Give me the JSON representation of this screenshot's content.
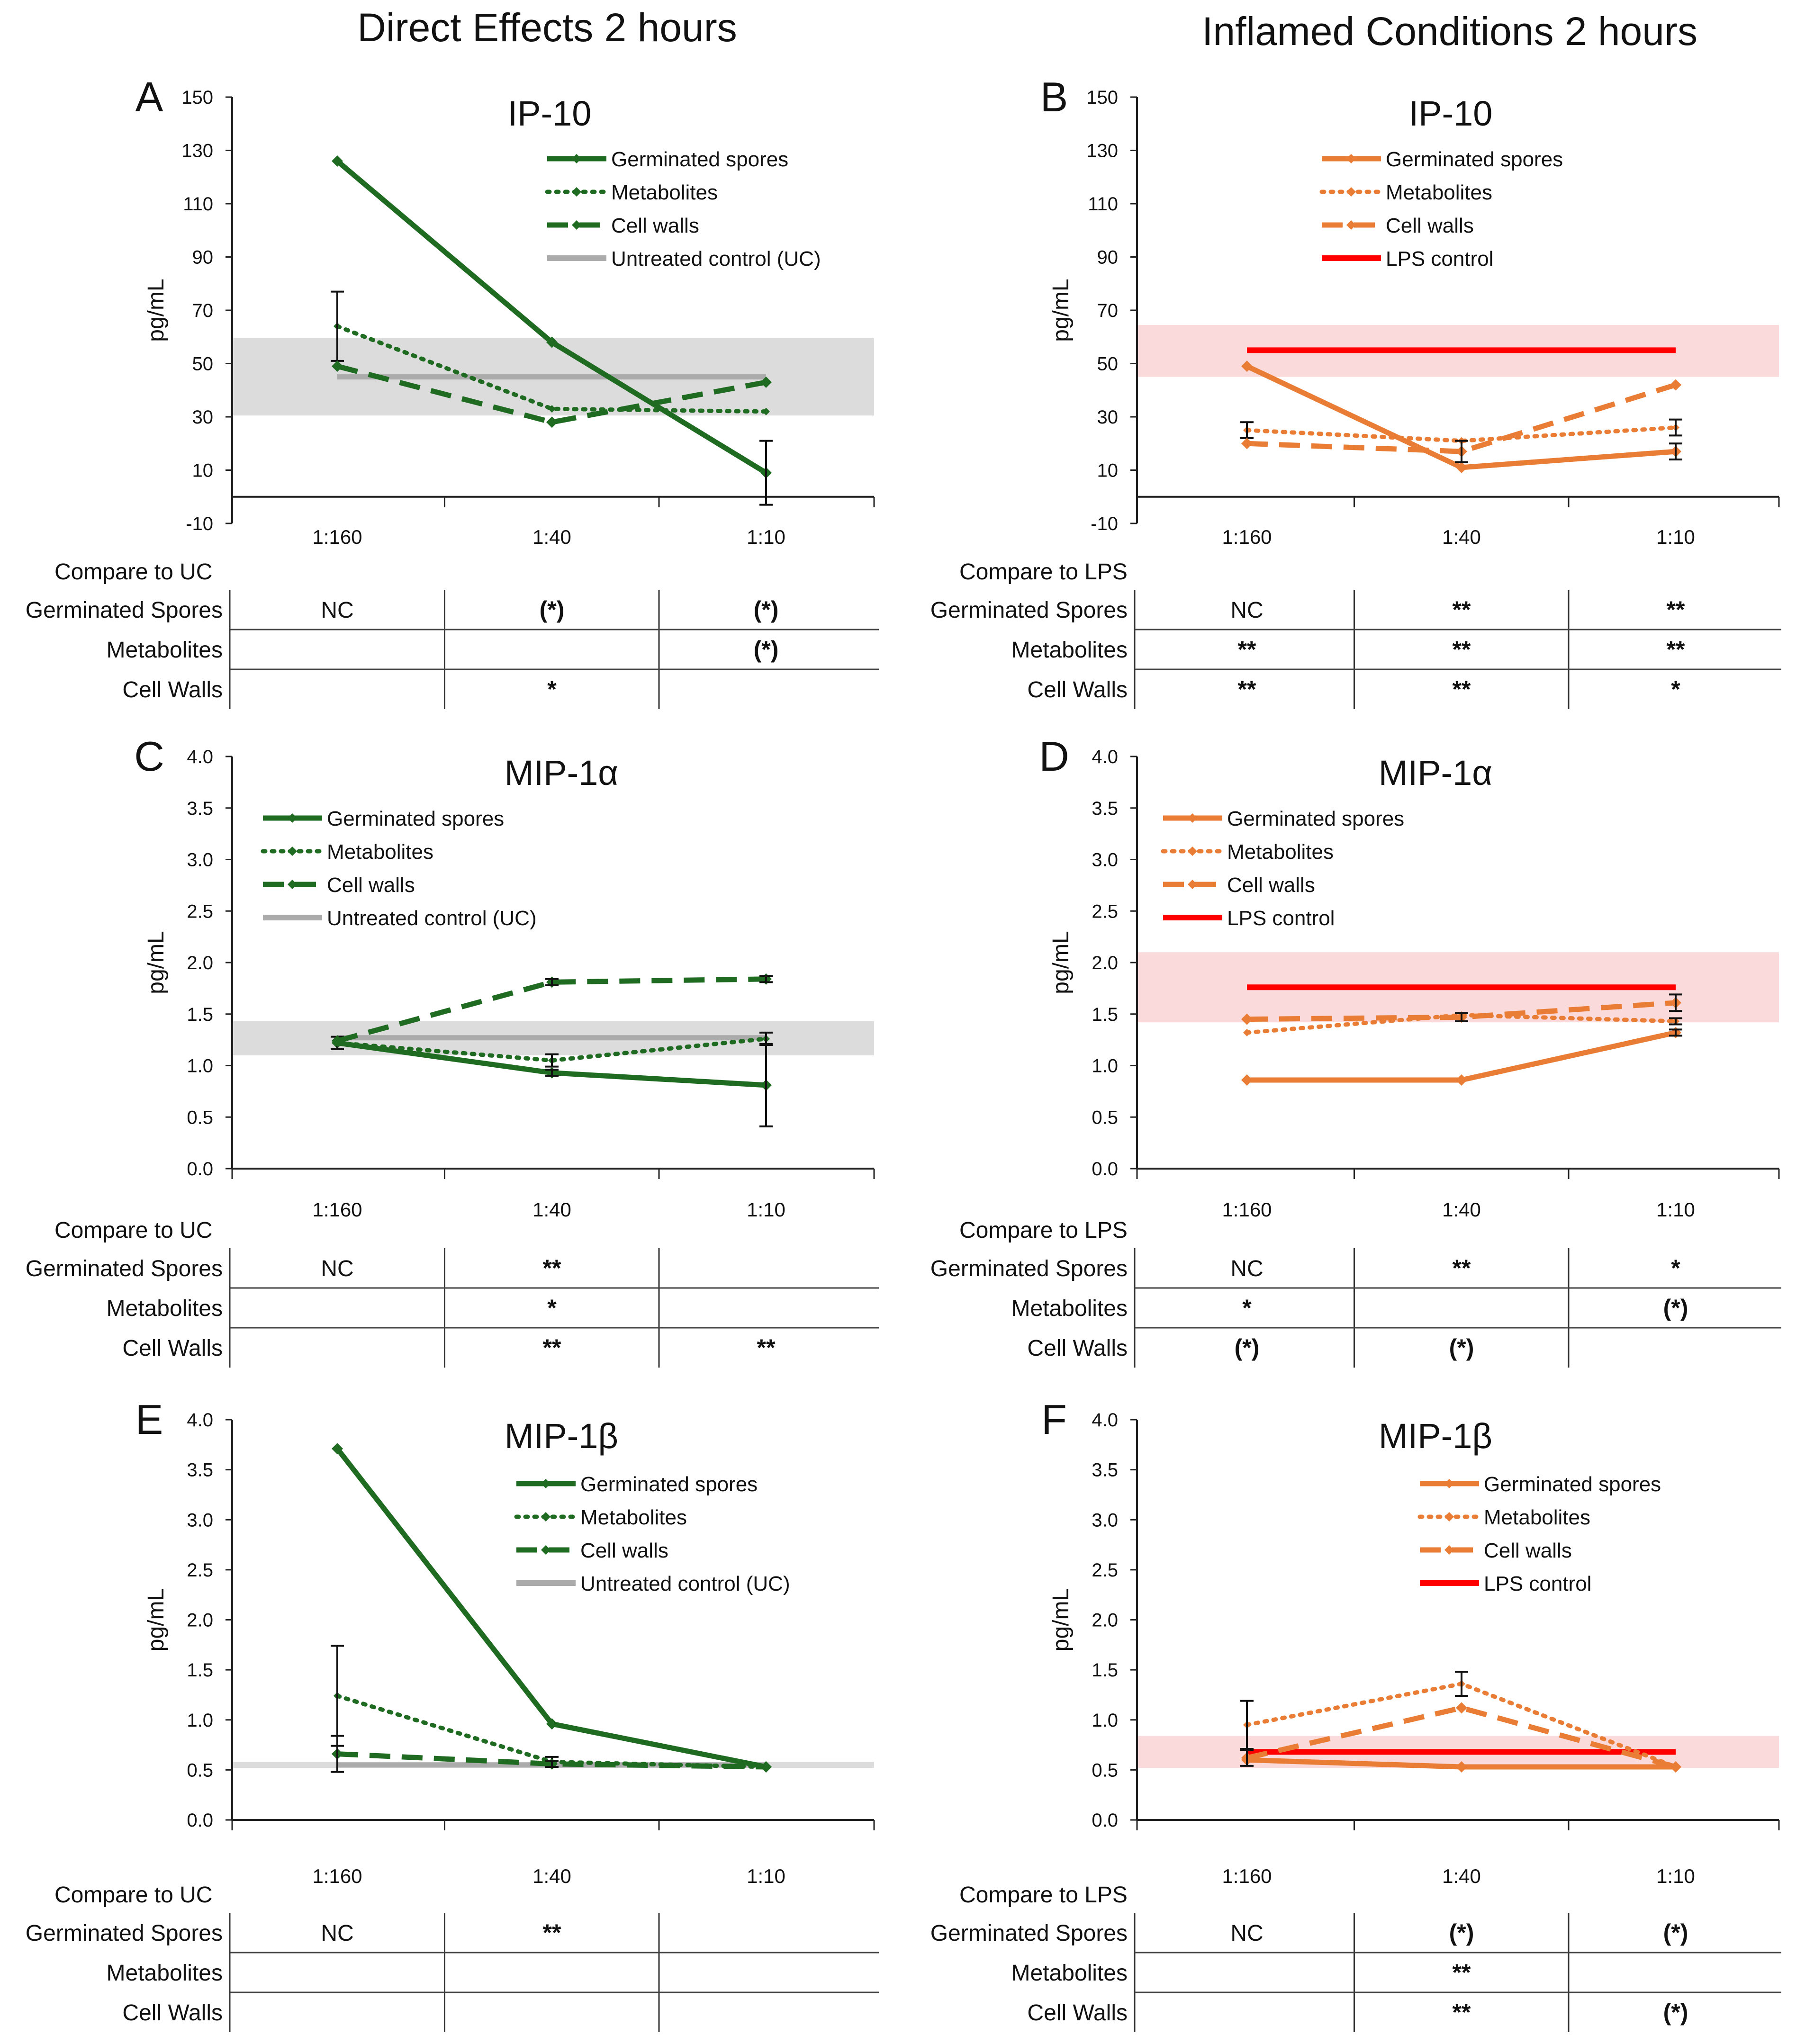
{
  "column_titles": [
    "Direct Effects 2 hours",
    "Inflamed Conditions 2 hours"
  ],
  "colors": {
    "green": "#1f6b21",
    "orange": "#ea7d36",
    "gray_line": "#ababab",
    "gray_band": "#dcdcdc",
    "red_line": "#ff0000",
    "pink_band": "#fadadb"
  },
  "chart_data": [
    {
      "panel": "A",
      "title": "IP-10",
      "type": "line",
      "ylabel": "pg/mL",
      "categories": [
        "1:160",
        "1:40",
        "1:10"
      ],
      "ylim": [
        -10,
        150
      ],
      "yticks": [
        -10,
        10,
        30,
        50,
        70,
        90,
        110,
        130,
        150
      ],
      "tick_decimals": 0,
      "scheme": "green",
      "series": [
        {
          "name": "Germinated spores",
          "style": "solid",
          "values": [
            126,
            58,
            9
          ],
          "errors": [
            0,
            0,
            12
          ]
        },
        {
          "name": "Metabolites",
          "style": "dotted",
          "values": [
            64,
            33,
            32
          ],
          "errors": [
            13,
            0,
            0
          ]
        },
        {
          "name": "Cell walls",
          "style": "dashed",
          "values": [
            49,
            28,
            43
          ],
          "errors": [
            0,
            0,
            0
          ]
        }
      ],
      "control": {
        "name": "Untreated control (UC)",
        "value": 45,
        "band": [
          30.5,
          59.5
        ]
      },
      "legend": [
        "Germinated spores",
        "Metabolites",
        "Cell walls",
        "Untreated control (UC)"
      ],
      "compare_label": "Compare to UC",
      "rows": [
        {
          "label": "Germinated Spores",
          "cells": [
            "NC",
            "(*)",
            "(*)"
          ]
        },
        {
          "label": "Metabolites",
          "cells": [
            "",
            "",
            "(*)"
          ]
        },
        {
          "label": "Cell Walls",
          "cells": [
            "",
            "*",
            ""
          ]
        }
      ]
    },
    {
      "panel": "B",
      "title": "IP-10",
      "type": "line",
      "ylabel": "pg/mL",
      "categories": [
        "1:160",
        "1:40",
        "1:10"
      ],
      "ylim": [
        -10,
        150
      ],
      "yticks": [
        -10,
        10,
        30,
        50,
        70,
        90,
        110,
        130,
        150
      ],
      "tick_decimals": 0,
      "scheme": "orange",
      "series": [
        {
          "name": "Germinated spores",
          "style": "solid",
          "values": [
            49,
            11,
            17
          ],
          "errors": [
            0,
            0,
            3
          ]
        },
        {
          "name": "Metabolites",
          "style": "dotted",
          "values": [
            25,
            21,
            26
          ],
          "errors": [
            3,
            0,
            3
          ]
        },
        {
          "name": "Cell walls",
          "style": "dashed",
          "values": [
            20,
            17,
            42
          ],
          "errors": [
            0,
            4,
            0
          ]
        }
      ],
      "control": {
        "name": "LPS control",
        "value": 55,
        "band": [
          45,
          64.5
        ]
      },
      "legend": [
        "Germinated spores",
        "Metabolites",
        "Cell walls",
        "LPS control"
      ],
      "compare_label": "Compare to LPS",
      "rows": [
        {
          "label": "Germinated Spores",
          "cells": [
            "NC",
            "**",
            "**"
          ]
        },
        {
          "label": "Metabolites",
          "cells": [
            "**",
            "**",
            "**"
          ]
        },
        {
          "label": "Cell Walls",
          "cells": [
            "**",
            "**",
            "*"
          ]
        }
      ]
    },
    {
      "panel": "C",
      "title": "MIP-1α",
      "type": "line",
      "ylabel": "pg/mL",
      "categories": [
        "1:160",
        "1:40",
        "1:10"
      ],
      "ylim": [
        0,
        4
      ],
      "yticks": [
        0,
        0.5,
        1.0,
        1.5,
        2.0,
        2.5,
        3.0,
        3.5,
        4.0
      ],
      "tick_decimals": 1,
      "scheme": "green",
      "series": [
        {
          "name": "Germinated spores",
          "style": "solid",
          "values": [
            1.22,
            0.93,
            0.81
          ],
          "errors": [
            0.06,
            0.03,
            0.4
          ]
        },
        {
          "name": "Metabolites",
          "style": "dotted",
          "values": [
            1.22,
            1.05,
            1.26
          ],
          "errors": [
            0,
            0.06,
            0.06
          ]
        },
        {
          "name": "Cell walls",
          "style": "dashed",
          "values": [
            1.24,
            1.81,
            1.84
          ],
          "errors": [
            0,
            0.03,
            0.03
          ]
        }
      ],
      "control": {
        "name": "Untreated control (UC)",
        "value": 1.27,
        "band": [
          1.1,
          1.43
        ]
      },
      "legend": [
        "Germinated spores",
        "Metabolites",
        "Cell walls",
        "Untreated control (UC)"
      ],
      "compare_label": "Compare to UC",
      "rows": [
        {
          "label": "Germinated Spores",
          "cells": [
            "NC",
            "**",
            ""
          ]
        },
        {
          "label": "Metabolites",
          "cells": [
            "",
            "*",
            ""
          ]
        },
        {
          "label": "Cell Walls",
          "cells": [
            "",
            "**",
            "**"
          ]
        }
      ]
    },
    {
      "panel": "D",
      "title": "MIP-1α",
      "type": "line",
      "ylabel": "pg/mL",
      "categories": [
        "1:160",
        "1:40",
        "1:10"
      ],
      "ylim": [
        0,
        4
      ],
      "yticks": [
        0,
        0.5,
        1.0,
        1.5,
        2.0,
        2.5,
        3.0,
        3.5,
        4.0
      ],
      "tick_decimals": 1,
      "scheme": "orange",
      "series": [
        {
          "name": "Germinated spores",
          "style": "solid",
          "values": [
            0.86,
            0.86,
            1.32
          ],
          "errors": [
            0,
            0,
            0.03
          ]
        },
        {
          "name": "Metabolites",
          "style": "dotted",
          "values": [
            1.32,
            1.49,
            1.43
          ],
          "errors": [
            0,
            0,
            0.03
          ]
        },
        {
          "name": "Cell walls",
          "style": "dashed",
          "values": [
            1.45,
            1.47,
            1.61
          ],
          "errors": [
            0,
            0.04,
            0.08
          ]
        }
      ],
      "control": {
        "name": "LPS control",
        "value": 1.76,
        "band": [
          1.42,
          2.1
        ]
      },
      "legend": [
        "Germinated spores",
        "Metabolites",
        "Cell walls",
        "LPS control"
      ],
      "compare_label": "Compare to LPS",
      "rows": [
        {
          "label": "Germinated Spores",
          "cells": [
            "NC",
            "**",
            "*"
          ]
        },
        {
          "label": "Metabolites",
          "cells": [
            "*",
            "",
            "(*)"
          ]
        },
        {
          "label": "Cell Walls",
          "cells": [
            "(*)",
            "(*)",
            ""
          ]
        }
      ]
    },
    {
      "panel": "E",
      "title": "MIP-1β",
      "type": "line",
      "ylabel": "pg/mL",
      "categories": [
        "1:160",
        "1:40",
        "1:10"
      ],
      "ylim": [
        0,
        4
      ],
      "yticks": [
        0,
        0.5,
        1.0,
        1.5,
        2.0,
        2.5,
        3.0,
        3.5,
        4.0
      ],
      "tick_decimals": 1,
      "scheme": "green",
      "series": [
        {
          "name": "Germinated spores",
          "style": "solid",
          "values": [
            3.71,
            0.96,
            0.53
          ],
          "errors": [
            0,
            0,
            0
          ]
        },
        {
          "name": "Metabolites",
          "style": "dotted",
          "values": [
            1.24,
            0.58,
            0.53
          ],
          "errors": [
            0.5,
            0.05,
            0
          ]
        },
        {
          "name": "Cell walls",
          "style": "dashed",
          "values": [
            0.66,
            0.56,
            0.53
          ],
          "errors": [
            0.18,
            0.03,
            0
          ]
        }
      ],
      "control": {
        "name": "Untreated control (UC)",
        "value": 0.55,
        "band": [
          0.52,
          0.58
        ]
      },
      "legend": [
        "Germinated spores",
        "Metabolites",
        "Cell walls",
        "Untreated control (UC)"
      ],
      "compare_label": "Compare to UC",
      "rows": [
        {
          "label": "Germinated Spores",
          "cells": [
            "NC",
            "**",
            ""
          ]
        },
        {
          "label": "Metabolites",
          "cells": [
            "",
            "",
            ""
          ]
        },
        {
          "label": "Cell Walls",
          "cells": [
            "",
            "",
            ""
          ]
        }
      ]
    },
    {
      "panel": "F",
      "title": "MIP-1β",
      "type": "line",
      "ylabel": "pg/mL",
      "categories": [
        "1:160",
        "1:40",
        "1:10"
      ],
      "ylim": [
        0,
        4
      ],
      "yticks": [
        0,
        0.5,
        1.0,
        1.5,
        2.0,
        2.5,
        3.0,
        3.5,
        4.0
      ],
      "tick_decimals": 1,
      "scheme": "orange",
      "series": [
        {
          "name": "Germinated spores",
          "style": "solid",
          "values": [
            0.6,
            0.53,
            0.53
          ],
          "errors": [
            0,
            0,
            0
          ]
        },
        {
          "name": "Metabolites",
          "style": "dotted",
          "values": [
            0.95,
            1.36,
            0.53
          ],
          "errors": [
            0.24,
            0.12,
            0
          ]
        },
        {
          "name": "Cell walls",
          "style": "dashed",
          "values": [
            0.62,
            1.12,
            0.53
          ],
          "errors": [
            0.08,
            0,
            0
          ]
        }
      ],
      "control": {
        "name": "LPS control",
        "value": 0.68,
        "band": [
          0.52,
          0.84
        ]
      },
      "legend": [
        "Germinated spores",
        "Metabolites",
        "Cell walls",
        "LPS control"
      ],
      "compare_label": "Compare to LPS",
      "rows": [
        {
          "label": "Germinated Spores",
          "cells": [
            "NC",
            "(*)",
            "(*)"
          ]
        },
        {
          "label": "Metabolites",
          "cells": [
            "",
            "**",
            ""
          ]
        },
        {
          "label": "Cell Walls",
          "cells": [
            "",
            "**",
            "(*)"
          ]
        }
      ]
    }
  ]
}
